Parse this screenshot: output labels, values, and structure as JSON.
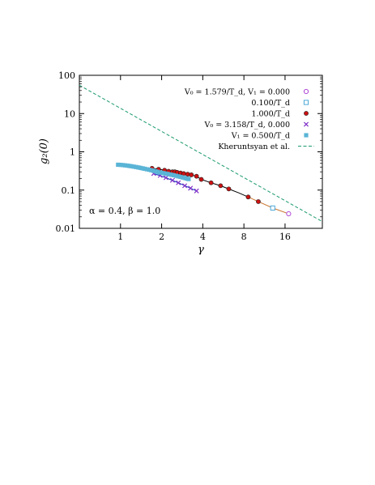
{
  "chart_data": {
    "type": "scatter",
    "xlabel": "γ",
    "ylabel": "g₂(0)",
    "x_scale": "log2",
    "y_scale": "log10",
    "xlim": [
      0.5,
      30
    ],
    "ylim": [
      0.01,
      100
    ],
    "x_ticks": [
      1,
      2,
      4,
      8,
      16
    ],
    "x_tick_labels": [
      "1",
      "2",
      "4",
      "8",
      "16"
    ],
    "y_ticks": [
      0.01,
      0.1,
      1,
      10,
      100
    ],
    "y_tick_labels": [
      "0.01",
      "0.1",
      "1",
      "10",
      "100"
    ],
    "grid": false,
    "legend_position": "top-right",
    "annotation": "α = 0.4, β = 1.0",
    "series": [
      {
        "name": "V₀ = 1.579/T_d, V₁ = 0.000",
        "marker": "open-circle",
        "color": "#b04bd8",
        "x": [
          17.0
        ],
        "y": [
          0.024
        ]
      },
      {
        "name": "0.100/T_d",
        "marker": "open-square",
        "color": "#4aa8d8",
        "x": [
          13.0
        ],
        "y": [
          0.034
        ]
      },
      {
        "name": "1.000/T_d",
        "marker": "filled-circle",
        "color": "#cc1111",
        "x": [
          1.7,
          1.9,
          2.1,
          2.25,
          2.4,
          2.5,
          2.6,
          2.75,
          2.9,
          3.1,
          3.3,
          3.6,
          3.9,
          4.6,
          5.4,
          6.2,
          8.6,
          10.2
        ],
        "y": [
          0.37,
          0.35,
          0.33,
          0.31,
          0.3,
          0.3,
          0.29,
          0.28,
          0.27,
          0.26,
          0.25,
          0.23,
          0.19,
          0.155,
          0.13,
          0.107,
          0.066,
          0.05
        ]
      },
      {
        "name": "V₀ = 3.158/T_d, 0.000",
        "marker": "cross",
        "color": "#8030c8",
        "x": [
          1.75,
          1.95,
          2.15,
          2.4,
          2.65,
          2.95,
          3.25,
          3.6
        ],
        "y": [
          0.27,
          0.24,
          0.21,
          0.18,
          0.155,
          0.13,
          0.112,
          0.095
        ]
      },
      {
        "name": "V₁ = 0.500/T_d",
        "marker": "filled-square",
        "color": "#5ab4d6",
        "x": [
          0.96,
          1.0,
          1.04,
          1.08,
          1.12,
          1.16,
          1.2,
          1.25,
          1.3,
          1.35,
          1.4,
          1.45,
          1.5,
          1.56,
          1.62,
          1.68,
          1.74,
          1.8,
          1.86,
          1.92,
          1.98,
          2.05,
          2.12,
          2.2,
          2.28,
          2.36,
          2.45,
          2.55,
          2.65,
          2.75,
          2.85,
          2.95,
          3.05,
          3.15
        ],
        "y": [
          0.46,
          0.455,
          0.45,
          0.443,
          0.436,
          0.428,
          0.42,
          0.41,
          0.4,
          0.39,
          0.38,
          0.37,
          0.36,
          0.35,
          0.34,
          0.33,
          0.32,
          0.31,
          0.3,
          0.29,
          0.285,
          0.278,
          0.272,
          0.265,
          0.258,
          0.251,
          0.244,
          0.236,
          0.228,
          0.221,
          0.214,
          0.207,
          0.2,
          0.194
        ]
      },
      {
        "name": "Kheruntsyan et al.",
        "marker": "dashed-line",
        "color": "#1a9a6a",
        "x": [
          0.5,
          30
        ],
        "y": [
          55,
          0.015
        ]
      }
    ],
    "lines": [
      {
        "color": "#000000",
        "x": [
          1.7,
          1.9,
          2.1,
          2.4,
          2.75,
          3.1,
          3.6,
          3.9,
          4.6,
          5.4,
          6.2,
          7.3,
          8.6
        ],
        "y": [
          0.37,
          0.35,
          0.33,
          0.3,
          0.28,
          0.26,
          0.23,
          0.19,
          0.155,
          0.13,
          0.107,
          0.085,
          0.066
        ]
      },
      {
        "color": "#c9722a",
        "x": [
          8.6,
          10.2,
          13.0,
          17.0
        ],
        "y": [
          0.066,
          0.05,
          0.034,
          0.024
        ]
      },
      {
        "color": "#1a3fbf",
        "x": [
          1.75,
          2.15,
          2.65,
          3.25,
          3.6
        ],
        "y": [
          0.27,
          0.21,
          0.155,
          0.112,
          0.095
        ]
      }
    ]
  }
}
